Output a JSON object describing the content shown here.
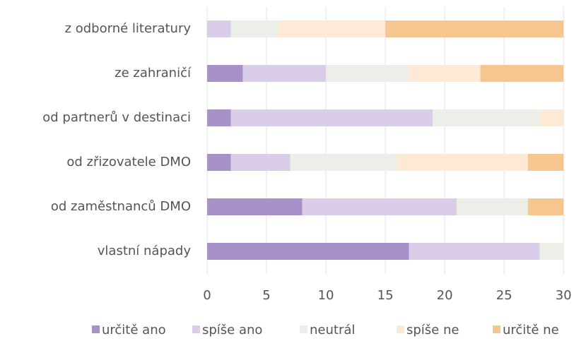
{
  "chart_data": {
    "type": "stacked-barh",
    "categories": [
      "z odborné literatury",
      "ze zahraničí",
      "od partnerů v destinaci",
      "od zřizovatele DMO",
      "od zaměstnanců DMO",
      "vlastní nápady"
    ],
    "series": [
      {
        "name": "určitě ano",
        "color": "#a891c9",
        "values": [
          0,
          3,
          2,
          2,
          8,
          17
        ]
      },
      {
        "name": "spíše ano",
        "color": "#d9cde7",
        "values": [
          2,
          7,
          17,
          5,
          13,
          11
        ]
      },
      {
        "name": "neutrál",
        "color": "#eceee8",
        "values": [
          4,
          7,
          9,
          9,
          6,
          2
        ]
      },
      {
        "name": "spíše ne",
        "color": "#fde9d6",
        "values": [
          9,
          6,
          2,
          11,
          0,
          0
        ]
      },
      {
        "name": "určitě ne",
        "color": "#f6c690",
        "values": [
          15,
          7,
          0,
          3,
          3,
          0
        ]
      }
    ],
    "xlim": [
      0,
      31
    ],
    "xticks": [
      0,
      5,
      10,
      15,
      20,
      25,
      30
    ],
    "grid": true,
    "legend": "bottom"
  }
}
